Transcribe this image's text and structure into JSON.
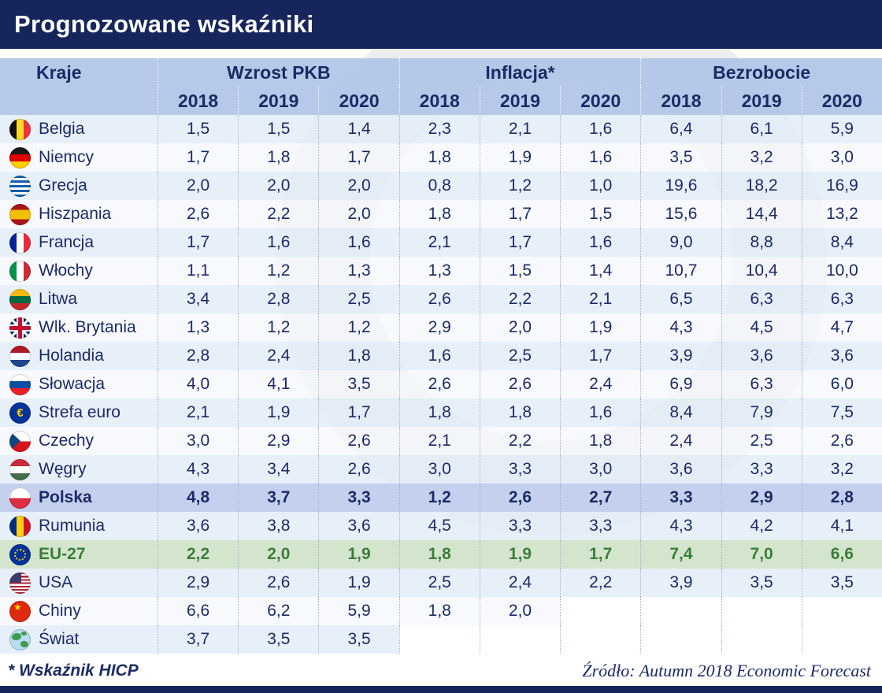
{
  "title": "Prognozowane wskaźniki",
  "chart_data": {
    "type": "table",
    "title": "Prognozowane wskaźniki",
    "country_header": "Kraje",
    "groups": [
      {
        "label": "Wzrost PKB",
        "years": [
          "2018",
          "2019",
          "2020"
        ]
      },
      {
        "label": "Inflacja*",
        "years": [
          "2018",
          "2019",
          "2020"
        ]
      },
      {
        "label": "Bezrobocie",
        "years": [
          "2018",
          "2019",
          "2020"
        ]
      }
    ],
    "rows": [
      {
        "country": "Belgia",
        "flag": "belgium",
        "highlight": "none",
        "values": [
          "1,5",
          "1,5",
          "1,4",
          "2,3",
          "2,1",
          "1,6",
          "6,4",
          "6,1",
          "5,9"
        ]
      },
      {
        "country": "Niemcy",
        "flag": "germany",
        "highlight": "none",
        "values": [
          "1,7",
          "1,8",
          "1,7",
          "1,8",
          "1,9",
          "1,6",
          "3,5",
          "3,2",
          "3,0"
        ]
      },
      {
        "country": "Grecja",
        "flag": "greece",
        "highlight": "none",
        "values": [
          "2,0",
          "2,0",
          "2,0",
          "0,8",
          "1,2",
          "1,0",
          "19,6",
          "18,2",
          "16,9"
        ]
      },
      {
        "country": "Hiszpania",
        "flag": "spain",
        "highlight": "none",
        "values": [
          "2,6",
          "2,2",
          "2,0",
          "1,8",
          "1,7",
          "1,5",
          "15,6",
          "14,4",
          "13,2"
        ]
      },
      {
        "country": "Francja",
        "flag": "france",
        "highlight": "none",
        "values": [
          "1,7",
          "1,6",
          "1,6",
          "2,1",
          "1,7",
          "1,6",
          "9,0",
          "8,8",
          "8,4"
        ]
      },
      {
        "country": "Włochy",
        "flag": "italy",
        "highlight": "none",
        "values": [
          "1,1",
          "1,2",
          "1,3",
          "1,3",
          "1,5",
          "1,4",
          "10,7",
          "10,4",
          "10,0"
        ]
      },
      {
        "country": "Litwa",
        "flag": "lithuania",
        "highlight": "none",
        "values": [
          "3,4",
          "2,8",
          "2,5",
          "2,6",
          "2,2",
          "2,1",
          "6,5",
          "6,3",
          "6,3"
        ]
      },
      {
        "country": "Wlk. Brytania",
        "flag": "uk",
        "highlight": "none",
        "values": [
          "1,3",
          "1,2",
          "1,2",
          "2,9",
          "2,0",
          "1,9",
          "4,3",
          "4,5",
          "4,7"
        ]
      },
      {
        "country": "Holandia",
        "flag": "netherlands",
        "highlight": "none",
        "values": [
          "2,8",
          "2,4",
          "1,8",
          "1,6",
          "2,5",
          "1,7",
          "3,9",
          "3,6",
          "3,6"
        ]
      },
      {
        "country": "Słowacja",
        "flag": "slovakia",
        "highlight": "none",
        "values": [
          "4,0",
          "4,1",
          "3,5",
          "2,6",
          "2,6",
          "2,4",
          "6,9",
          "6,3",
          "6,0"
        ]
      },
      {
        "country": "Strefa euro",
        "flag": "euro",
        "highlight": "none",
        "values": [
          "2,1",
          "1,9",
          "1,7",
          "1,8",
          "1,8",
          "1,6",
          "8,4",
          "7,9",
          "7,5"
        ]
      },
      {
        "country": "Czechy",
        "flag": "czech",
        "highlight": "none",
        "values": [
          "3,0",
          "2,9",
          "2,6",
          "2,1",
          "2,2",
          "1,8",
          "2,4",
          "2,5",
          "2,6"
        ]
      },
      {
        "country": "Węgry",
        "flag": "hungary",
        "highlight": "none",
        "values": [
          "4,3",
          "3,4",
          "2,6",
          "3,0",
          "3,3",
          "3,0",
          "3,6",
          "3,3",
          "3,2"
        ]
      },
      {
        "country": "Polska",
        "flag": "poland",
        "highlight": "poland",
        "values": [
          "4,8",
          "3,7",
          "3,3",
          "1,2",
          "2,6",
          "2,7",
          "3,3",
          "2,9",
          "2,8"
        ]
      },
      {
        "country": "Rumunia",
        "flag": "romania",
        "highlight": "none",
        "values": [
          "3,6",
          "3,8",
          "3,6",
          "4,5",
          "3,3",
          "3,3",
          "4,3",
          "4,2",
          "4,1"
        ]
      },
      {
        "country": "EU-27",
        "flag": "eu",
        "highlight": "eu",
        "values": [
          "2,2",
          "2,0",
          "1,9",
          "1,8",
          "1,9",
          "1,7",
          "7,4",
          "7,0",
          "6,6"
        ]
      },
      {
        "country": "USA",
        "flag": "usa",
        "highlight": "none",
        "values": [
          "2,9",
          "2,6",
          "1,9",
          "2,5",
          "2,4",
          "2,2",
          "3,9",
          "3,5",
          "3,5"
        ]
      },
      {
        "country": "Chiny",
        "flag": "china",
        "highlight": "none",
        "values": [
          "6,6",
          "6,2",
          "5,9",
          "1,8",
          "2,0",
          "",
          "",
          "",
          ""
        ]
      },
      {
        "country": "Świat",
        "flag": "world",
        "highlight": "none",
        "values": [
          "3,7",
          "3,5",
          "3,5",
          "",
          "",
          "",
          "",
          "",
          ""
        ]
      }
    ],
    "footnote": "* Wskaźnik HICP",
    "source": "Źródło: Autumn 2018 Economic Forecast"
  },
  "colors": {
    "title_bar": "#16265C",
    "header_bg": "#B2C6E7",
    "row_odd": "#E3ECF8",
    "row_even": "#F5F8FD",
    "highlight_poland": "#C2CEED",
    "highlight_eu": "#D1E5CB",
    "text_navy": "#1B2B66",
    "text_green": "#3E7C3A"
  }
}
